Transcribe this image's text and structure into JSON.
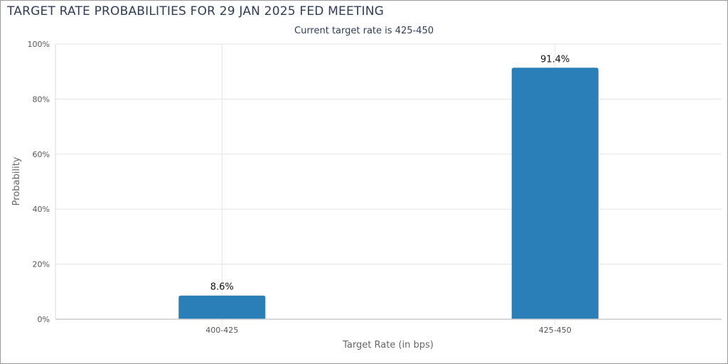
{
  "chart_data": {
    "type": "bar",
    "title": "TARGET RATE PROBABILITIES FOR 29 JAN 2025 FED MEETING",
    "subtitle": "Current target rate is 425-450",
    "xlabel": "Target Rate (in bps)",
    "ylabel": "Probability",
    "categories": [
      "400-425",
      "425-450"
    ],
    "values": [
      8.6,
      91.4
    ],
    "data_labels": [
      "8.6%",
      "91.4%"
    ],
    "ylim": [
      0,
      100
    ],
    "yticks": [
      0,
      20,
      40,
      60,
      80,
      100
    ],
    "ytick_labels": [
      "0%",
      "20%",
      "40%",
      "60%",
      "80%",
      "100%"
    ],
    "grid": true,
    "bar_color": "#2a7fb8"
  }
}
